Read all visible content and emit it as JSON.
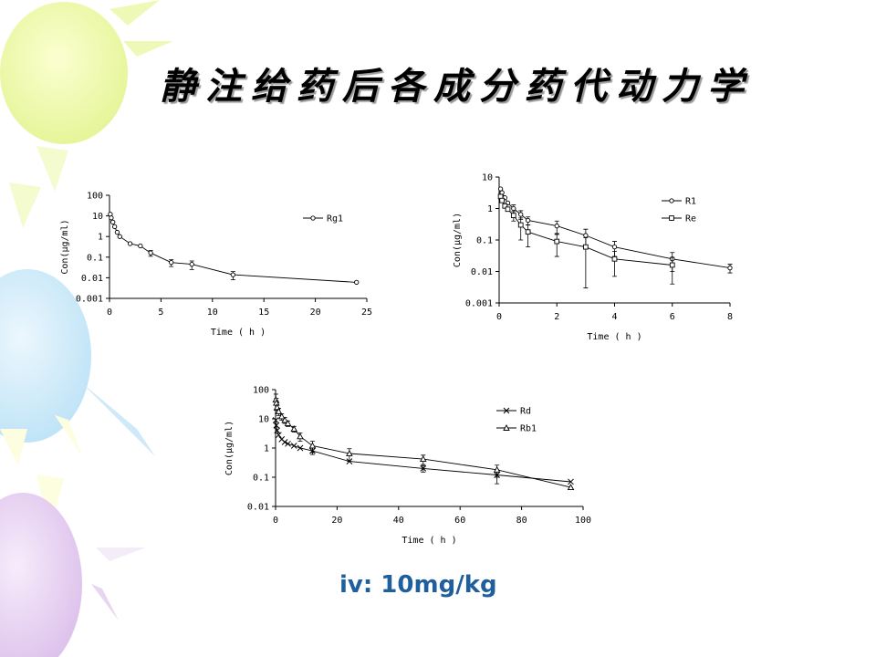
{
  "slide": {
    "title": "静注给药后各成分药代动力学",
    "caption": "iv: 10mg/kg"
  },
  "chart_data": [
    {
      "type": "line",
      "log_y": true,
      "xlabel": "Time ( h )",
      "ylabel": "Con(μg/ml)",
      "xlim": [
        0,
        25
      ],
      "ylim": [
        0.001,
        100
      ],
      "xticks": [
        "0",
        "5",
        "10",
        "15",
        "20",
        "25"
      ],
      "yticks": [
        "0.001",
        "0.01",
        "0.1",
        "1",
        "10",
        "100"
      ],
      "legend": "right",
      "series": [
        {
          "name": "Rg1",
          "marker": "circle",
          "x": [
            0.08,
            0.17,
            0.33,
            0.5,
            0.75,
            1,
            2,
            3,
            4,
            6,
            8,
            12,
            24
          ],
          "y": [
            12,
            8,
            5,
            3,
            1.6,
            1.0,
            0.45,
            0.35,
            0.16,
            0.055,
            0.045,
            0.014,
            0.006
          ],
          "err": [
            0,
            0,
            0,
            0,
            0,
            0,
            0,
            0,
            0.05,
            0.02,
            0.02,
            0.006,
            0
          ]
        }
      ]
    },
    {
      "type": "line",
      "log_y": true,
      "xlabel": "Time ( h )",
      "ylabel": "Con(μg/ml)",
      "xlim": [
        0,
        8
      ],
      "ylim": [
        0.001,
        10
      ],
      "xticks": [
        "0",
        "2",
        "4",
        "6",
        "8"
      ],
      "yticks": [
        "0.001",
        "0.01",
        "0.1",
        "1",
        "10"
      ],
      "legend": "right",
      "series": [
        {
          "name": "R1",
          "marker": "circle",
          "x": [
            0.05,
            0.1,
            0.2,
            0.3,
            0.5,
            0.75,
            1,
            2,
            3,
            4,
            6,
            8
          ],
          "y": [
            4.2,
            3.2,
            2.2,
            1.5,
            1.0,
            0.65,
            0.42,
            0.28,
            0.14,
            0.06,
            0.025,
            0.013
          ],
          "err": [
            0,
            0,
            0,
            0,
            0.3,
            0.2,
            0.12,
            0.12,
            0.08,
            0.03,
            0.015,
            0.004
          ]
        },
        {
          "name": "Re",
          "marker": "square",
          "x": [
            0.05,
            0.1,
            0.2,
            0.3,
            0.5,
            0.75,
            1,
            2,
            3,
            4,
            6
          ],
          "y": [
            2.4,
            1.8,
            1.2,
            0.95,
            0.6,
            0.3,
            0.18,
            0.09,
            0.06,
            0.025,
            0.016
          ],
          "err": [
            0,
            0,
            0,
            0,
            0.2,
            0.2,
            0.12,
            0.06,
            0.057,
            0.018,
            0.012
          ]
        }
      ]
    },
    {
      "type": "line",
      "log_y": true,
      "xlabel": "Time ( h )",
      "ylabel": "Con(μg/ml)",
      "xlim": [
        0,
        100
      ],
      "ylim": [
        0.01,
        100
      ],
      "xticks": [
        "0",
        "20",
        "40",
        "60",
        "80",
        "100"
      ],
      "yticks": [
        "0.01",
        "0.1",
        "1",
        "10",
        "100"
      ],
      "legend": "right",
      "series": [
        {
          "name": "Rd",
          "marker": "x",
          "x": [
            0.08,
            0.25,
            0.5,
            1,
            2,
            3,
            4,
            6,
            8,
            12,
            24,
            48,
            72,
            96
          ],
          "y": [
            9,
            6,
            4,
            2.8,
            2.0,
            1.6,
            1.4,
            1.2,
            1.0,
            0.8,
            0.35,
            0.2,
            0.12,
            0.07
          ],
          "err": [
            0,
            0,
            0,
            0,
            0,
            0,
            0,
            0,
            0,
            0.2,
            0,
            0.05,
            0.06,
            0
          ]
        },
        {
          "name": "Rb1",
          "marker": "triangle",
          "x": [
            0.08,
            0.25,
            0.5,
            1,
            2,
            3,
            4,
            6,
            8,
            12,
            24,
            48,
            72,
            96
          ],
          "y": [
            45,
            35,
            25,
            18,
            12,
            9,
            7,
            4.5,
            2.5,
            1.2,
            0.65,
            0.42,
            0.18,
            0.045
          ],
          "err": [
            25,
            15,
            10,
            5,
            3,
            2,
            1.5,
            1.0,
            0.8,
            0.5,
            0.3,
            0.15,
            0.08,
            0
          ]
        }
      ]
    }
  ]
}
